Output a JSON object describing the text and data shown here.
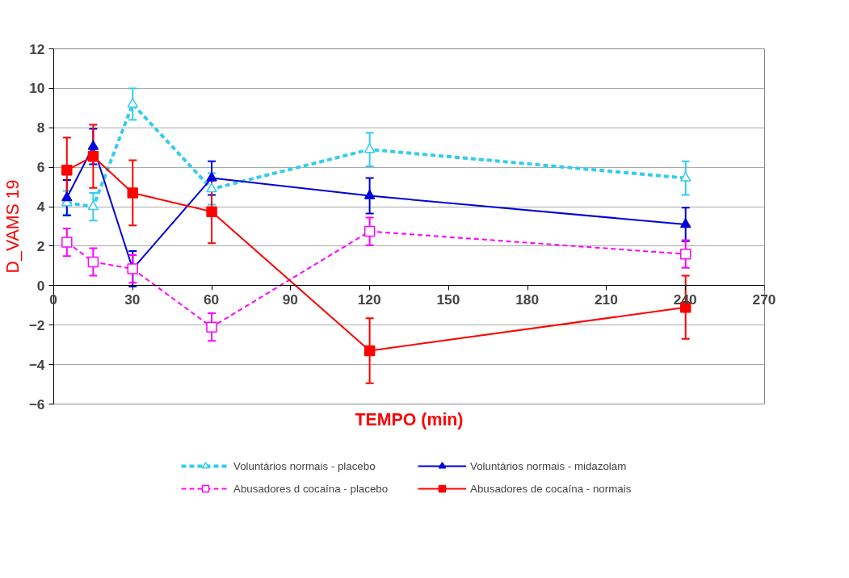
{
  "chart_data": {
    "type": "line",
    "xlabel": "TEMPO (min)",
    "ylabel": "D_VAMS 19",
    "x": [
      5,
      15,
      30,
      60,
      120,
      240
    ],
    "series": [
      {
        "name": "Voluntários normais - placebo",
        "color": "#33ccee",
        "line_style": "dashed",
        "marker": "triangle",
        "values": [
          4.2,
          4.0,
          9.2,
          4.9,
          6.9,
          5.45
        ],
        "errors": [
          0.6,
          0.7,
          0.8,
          0.8,
          0.85,
          0.85
        ]
      },
      {
        "name": "Voluntários normais - midazolam",
        "color": "#0000dd",
        "line_style": "solid",
        "marker": "triangle",
        "values": [
          4.45,
          7.05,
          0.85,
          5.45,
          4.55,
          3.1
        ],
        "errors": [
          0.9,
          0.9,
          0.9,
          0.85,
          0.9,
          0.85
        ]
      },
      {
        "name": "Abusadores d cocaína - placebo",
        "color": "#ff00ff",
        "line_style": "dashed",
        "marker": "square",
        "values": [
          2.2,
          1.2,
          0.85,
          -2.1,
          2.75,
          1.6
        ],
        "errors": [
          0.7,
          0.7,
          0.7,
          0.7,
          0.7,
          0.7
        ]
      },
      {
        "name": "Abusadores de cocaína - normais",
        "color": "#ff0000",
        "line_style": "solid",
        "marker": "square",
        "values": [
          5.85,
          6.55,
          4.7,
          3.75,
          -3.3,
          -1.1
        ],
        "errors": [
          1.65,
          1.6,
          1.65,
          1.6,
          1.65,
          1.6
        ]
      }
    ],
    "xlim": [
      0,
      270
    ],
    "xticks": [
      0,
      30,
      60,
      90,
      120,
      150,
      180,
      210,
      240,
      270
    ],
    "ylim": [
      -6,
      12
    ],
    "yticks": [
      -6,
      -4,
      -2,
      0,
      2,
      4,
      6,
      8,
      10,
      12
    ],
    "grid": "y",
    "legend": "bottom"
  }
}
